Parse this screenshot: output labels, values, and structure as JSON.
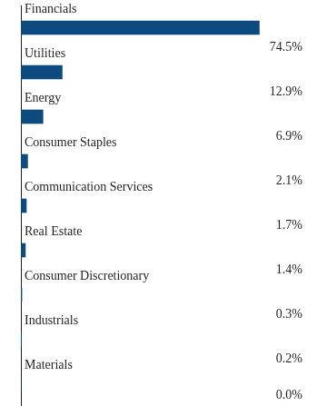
{
  "chart_data": {
    "type": "bar",
    "orientation": "horizontal",
    "categories": [
      "Financials",
      "Utilities",
      "Energy",
      "Consumer Staples",
      "Communication Services",
      "Real Estate",
      "Consumer Discretionary",
      "Industrials",
      "Materials"
    ],
    "values": [
      74.5,
      12.9,
      6.9,
      2.1,
      1.7,
      1.4,
      0.3,
      0.2,
      0.0
    ],
    "value_labels": [
      "74.5%",
      "12.9%",
      "6.9%",
      "2.1%",
      "1.7%",
      "1.4%",
      "0.3%",
      "0.2%",
      "0.0%"
    ],
    "color": "#0d4a80",
    "xlim": [
      0,
      88
    ],
    "grid": false,
    "tick_labels": false,
    "data_labels": true
  }
}
